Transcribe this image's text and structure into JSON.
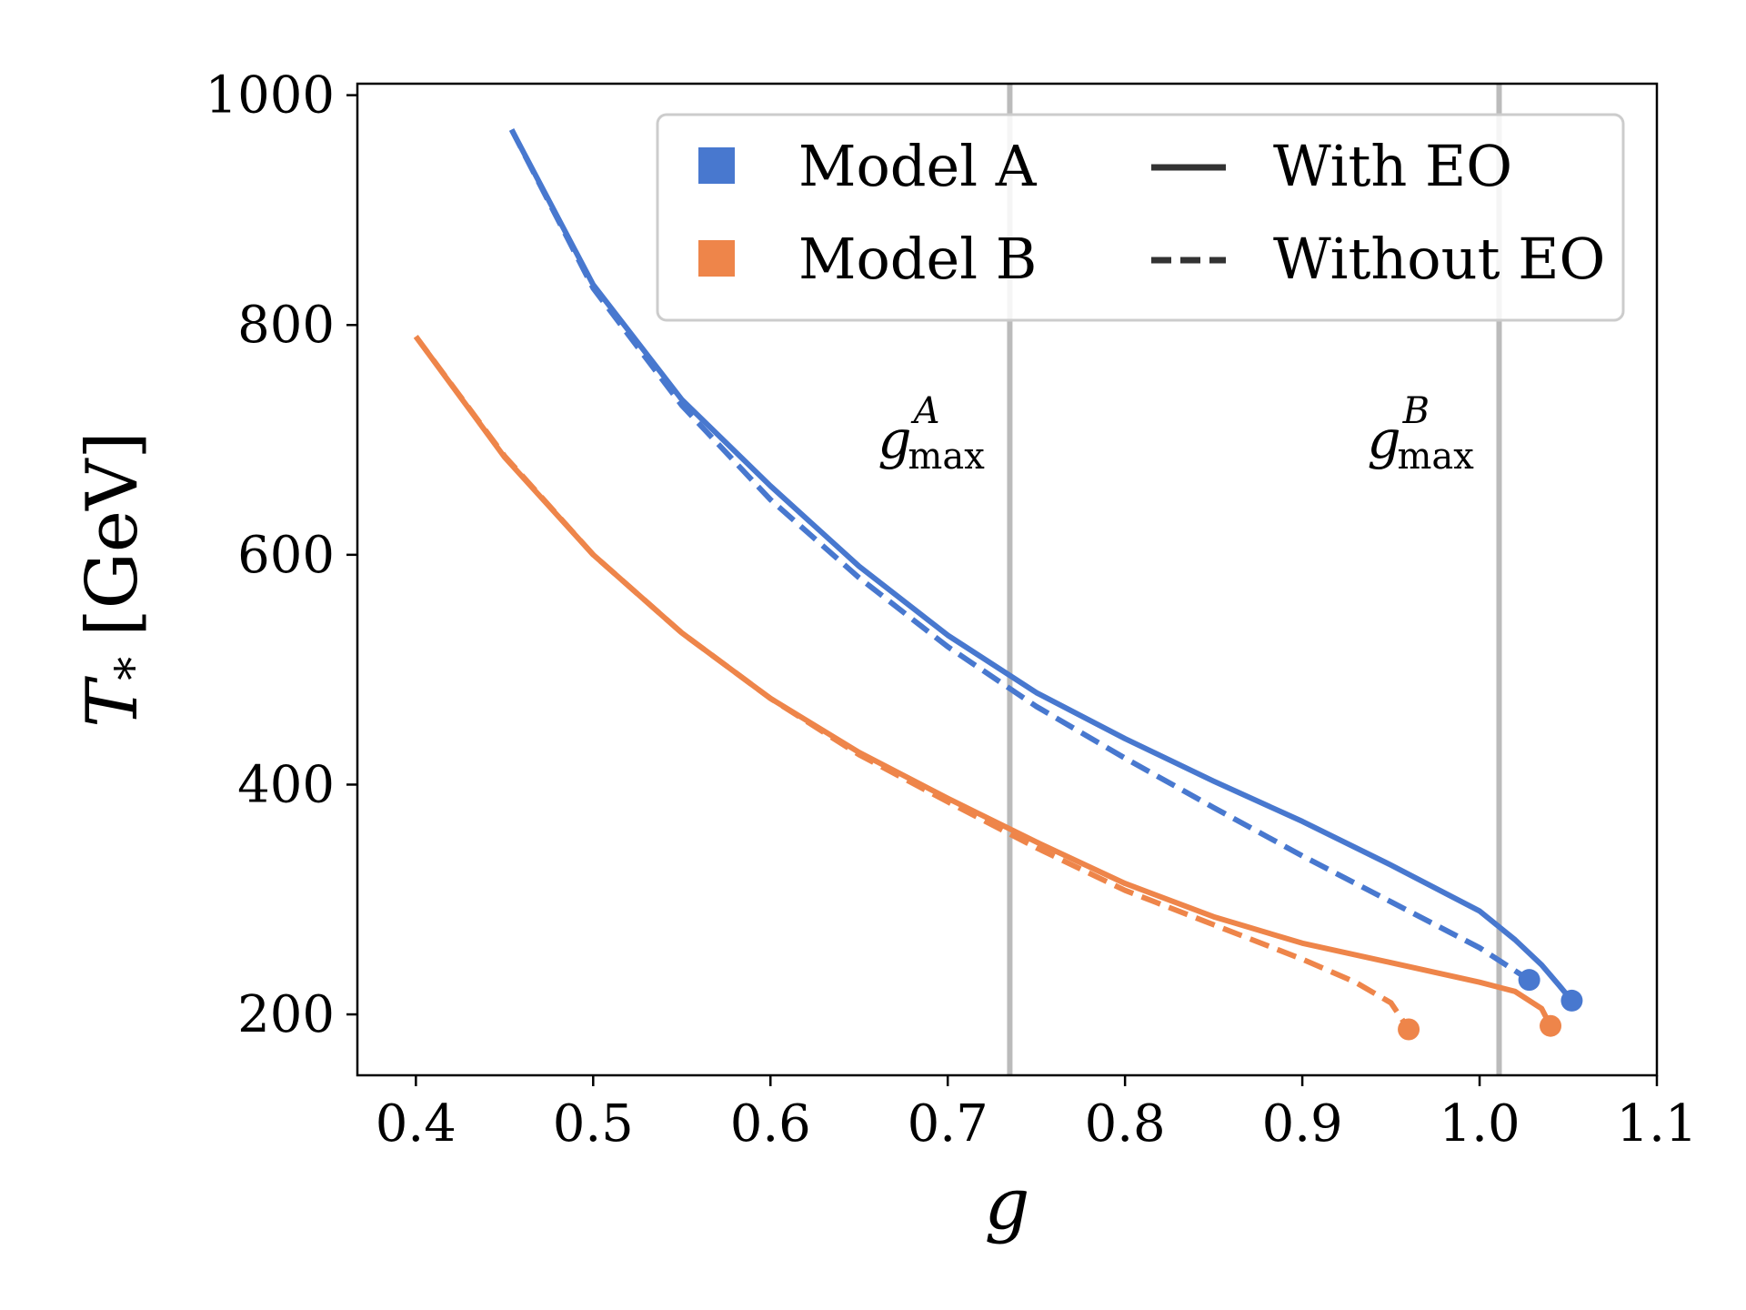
{
  "chart_data": {
    "type": "line",
    "title": "",
    "xlabel": "g",
    "ylabel_main": "T",
    "ylabel_sub": "*",
    "ylabel_unit": "[GeV]",
    "xlim": [
      0.367,
      1.1
    ],
    "ylim": [
      147,
      1010
    ],
    "x_ticks": [
      0.4,
      0.5,
      0.6,
      0.7,
      0.8,
      0.9,
      1.0,
      1.1
    ],
    "x_tick_labels": [
      "0.4",
      "0.5",
      "0.6",
      "0.7",
      "0.8",
      "0.9",
      "1.0",
      "1.1"
    ],
    "y_ticks": [
      200,
      400,
      600,
      800,
      1000
    ],
    "y_tick_labels": [
      "200",
      "400",
      "600",
      "800",
      "1000"
    ],
    "vlines": [
      {
        "name": "g_max_A",
        "x": 0.735,
        "label_base": "g",
        "label_sup": "A",
        "label_sub": "max",
        "color": "#bbbbbb"
      },
      {
        "name": "g_max_B",
        "x": 1.011,
        "label_base": "g",
        "label_sup": "B",
        "label_sub": "max",
        "color": "#bbbbbb"
      }
    ],
    "legend": {
      "placement": "top-right",
      "models": [
        {
          "label": "Model A",
          "color": "#4878cf"
        },
        {
          "label": "Model B",
          "color": "#ee854a"
        }
      ],
      "styles": [
        {
          "label": "With EO",
          "dash": "solid"
        },
        {
          "label": "Without EO",
          "dash": "dashed"
        }
      ]
    },
    "series": [
      {
        "name": "Model A With EO",
        "model": "Model A",
        "style": "solid",
        "color": "#4878cf",
        "x": [
          0.454,
          0.5,
          0.55,
          0.6,
          0.65,
          0.7,
          0.75,
          0.8,
          0.85,
          0.9,
          0.95,
          1.0,
          1.02,
          1.035,
          1.045,
          1.052
        ],
        "y": [
          970,
          835,
          735,
          660,
          590,
          530,
          480,
          440,
          403,
          368,
          330,
          290,
          265,
          243,
          225,
          212
        ],
        "endpoint": {
          "x": 1.052,
          "y": 212
        }
      },
      {
        "name": "Model A Without EO",
        "model": "Model A",
        "style": "dashed",
        "color": "#4878cf",
        "x": [
          0.454,
          0.5,
          0.55,
          0.6,
          0.65,
          0.7,
          0.75,
          0.8,
          0.85,
          0.9,
          0.95,
          1.0,
          1.028
        ],
        "y": [
          970,
          832,
          730,
          648,
          580,
          520,
          468,
          423,
          380,
          338,
          298,
          258,
          230
        ],
        "endpoint": {
          "x": 1.028,
          "y": 230
        }
      },
      {
        "name": "Model B With EO",
        "model": "Model B",
        "style": "solid",
        "color": "#ee854a",
        "x": [
          0.4,
          0.45,
          0.5,
          0.55,
          0.6,
          0.65,
          0.7,
          0.75,
          0.8,
          0.85,
          0.9,
          0.95,
          1.0,
          1.02,
          1.035,
          1.04
        ],
        "y": [
          790,
          685,
          600,
          532,
          475,
          428,
          388,
          350,
          314,
          285,
          262,
          245,
          228,
          220,
          205,
          190
        ],
        "endpoint": {
          "x": 1.04,
          "y": 190
        }
      },
      {
        "name": "Model B Without EO",
        "model": "Model B",
        "style": "dashed",
        "color": "#ee854a",
        "x": [
          0.4,
          0.45,
          0.5,
          0.55,
          0.6,
          0.65,
          0.7,
          0.75,
          0.8,
          0.85,
          0.9,
          0.93,
          0.95,
          0.96
        ],
        "y": [
          790,
          686,
          600,
          532,
          475,
          426,
          385,
          345,
          308,
          278,
          248,
          228,
          210,
          187
        ],
        "endpoint": {
          "x": 0.96,
          "y": 187
        }
      }
    ]
  }
}
